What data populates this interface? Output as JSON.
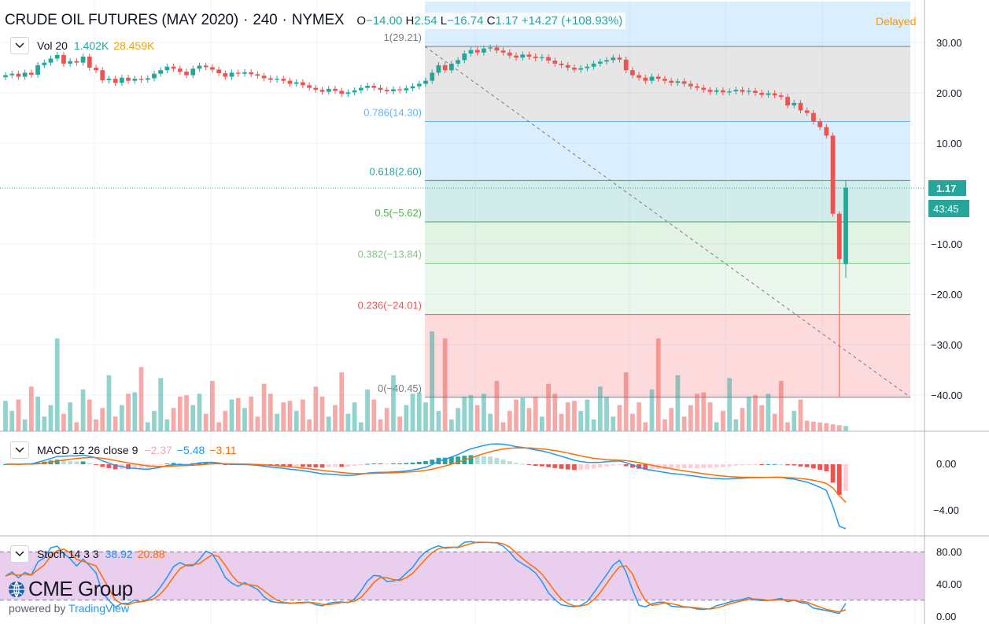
{
  "header": {
    "symbol": "CRUDE OIL FUTURES (MAY 2020)",
    "interval": "240",
    "exchange": "NYMEX",
    "ohlc": {
      "o_label": "O",
      "o": "−14.00",
      "h_label": "H",
      "h": "2.54",
      "l_label": "L",
      "l": "−16.74",
      "c_label": "C",
      "c": "1.17",
      "change": "+14.27 (+108.93%)"
    },
    "status": "Delayed"
  },
  "price_axis": {
    "labels": [
      "30.00",
      "20.00",
      "10.00",
      "−10.00",
      "−20.00",
      "−30.00",
      "−40.00"
    ],
    "last_price": "1.17",
    "countdown": "43:45"
  },
  "volume_legend": {
    "name": "Vol 20",
    "v1": "1.402K",
    "v2": "28.459K"
  },
  "macd_legend": {
    "name": "MACD 12 26 close 9",
    "hist": "−2.37",
    "macd": "−5.48",
    "signal": "−3.11"
  },
  "macd_axis": {
    "labels": [
      "0.00",
      "−4.00"
    ]
  },
  "stoch_legend": {
    "name": "Stoch 14 3 3",
    "k": "38.92",
    "d": "20.88"
  },
  "stoch_axis": {
    "labels": [
      "80.00",
      "40.00",
      "0.00"
    ]
  },
  "fib_labels": [
    "1(29.21)",
    "0.786(14.30)",
    "0.618(2.60)",
    "0.5(−5.62)",
    "0.382(−13.84)",
    "0.236(−24.01)",
    "0(−40.45)"
  ],
  "brand": {
    "name": "CME Group",
    "powered": "powered by",
    "platform": "TradingView"
  },
  "colors": {
    "up": "#26a69a",
    "down": "#ef5350",
    "macd": "#2196f3",
    "signal": "#ff6d00",
    "stoch_k": "#2196f3",
    "stoch_d": "#ff6d00",
    "band": "#e1bee7",
    "delayed": "#ff9800"
  },
  "chart_data": {
    "type": "candlestick",
    "fibonacci_retracement": [
      {
        "level": 1,
        "price": 29.21
      },
      {
        "level": 0.786,
        "price": 14.3
      },
      {
        "level": 0.618,
        "price": 2.6
      },
      {
        "level": 0.5,
        "price": -5.62
      },
      {
        "level": 0.382,
        "price": -13.84
      },
      {
        "level": 0.236,
        "price": -24.01
      },
      {
        "level": 0,
        "price": -40.45
      }
    ],
    "price_ylim": [
      -42,
      33
    ],
    "closes": [
      23.5,
      23.8,
      23.2,
      24.0,
      23.6,
      25.5,
      26.0,
      26.8,
      27.5,
      25.8,
      26.3,
      26.0,
      27.2,
      25.0,
      24.5,
      22.5,
      22.8,
      22.0,
      23.0,
      22.4,
      22.8,
      22.6,
      22.9,
      23.8,
      24.5,
      25.2,
      24.8,
      24.2,
      23.5,
      24.8,
      25.4,
      25.1,
      24.6,
      23.9,
      23.2,
      24.0,
      23.8,
      24.1,
      23.7,
      23.4,
      22.9,
      22.6,
      22.8,
      22.4,
      21.8,
      22.1,
      21.5,
      21.0,
      20.6,
      20.2,
      20.8,
      20.4,
      19.8,
      20.1,
      20.5,
      21.0,
      21.4,
      21.0,
      20.6,
      20.3,
      20.7,
      20.5,
      20.9,
      21.3,
      21.8,
      22.4,
      24.0,
      25.5,
      24.5,
      25.8,
      26.5,
      27.8,
      28.5,
      28.0,
      28.8,
      29.0,
      28.4,
      28.0,
      27.4,
      27.0,
      27.6,
      27.2,
      26.9,
      27.1,
      26.4,
      25.8,
      25.5,
      25.0,
      24.6,
      24.9,
      25.2,
      25.8,
      26.2,
      26.5,
      27.0,
      26.6,
      24.5,
      23.5,
      23.0,
      22.4,
      23.2,
      22.8,
      22.4,
      22.0,
      22.3,
      21.8,
      21.3,
      21.0,
      20.6,
      20.2,
      20.5,
      20.1,
      20.3,
      20.6,
      20.2,
      20.4,
      20.0,
      19.6,
      19.9,
      19.5,
      19.2,
      17.5,
      18.0,
      16.5,
      16.0,
      14.3,
      13.2,
      11.5,
      -4.0,
      -13.0,
      1.17
    ],
    "volume_ylim": [
      0,
      30000
    ],
    "macd_ylim": [
      -5.6,
      1.3
    ],
    "stoch_ylim": [
      0,
      100
    ]
  }
}
